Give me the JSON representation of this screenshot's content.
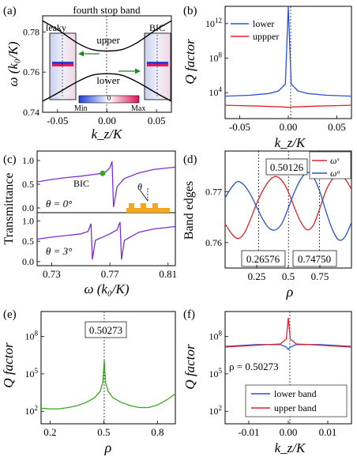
{
  "panels": {
    "a": {
      "label": "(a)",
      "title": "fourth stop band",
      "ylabel": "ω (k₀/K)",
      "xlabel": "k_z/K",
      "band_upper": "upper",
      "band_lower": "lower",
      "inset_left": "leaky",
      "inset_right": "BIC",
      "cbar_min": "Min",
      "cbar_zero": "0",
      "cbar_max": "Max"
    },
    "b": {
      "label": "(b)",
      "ylabel": "Q factor",
      "xlabel": "k_z/K",
      "legend": [
        "lower",
        "uppper"
      ]
    },
    "c": {
      "label": "(c)",
      "ylabel": "Transmittance",
      "xlabel": "ω (k₀/K)",
      "bic": "BIC",
      "theta_top": "θ = 0°",
      "theta_bottom": "θ = 3°",
      "theta_symbol": "θ"
    },
    "d": {
      "label": "(d)",
      "ylabel": "Band edges",
      "xlabel": "ρ",
      "legend": [
        "ωˢ",
        "ωᵃ"
      ],
      "annotations": [
        "0.50126",
        "0.26576",
        "0.74750"
      ]
    },
    "e": {
      "label": "(e)",
      "ylabel": "Q factor",
      "xlabel": "ρ",
      "annotation": "0.50273"
    },
    "f": {
      "label": "(f)",
      "ylabel": "Q factor",
      "xlabel": "k_z/K",
      "annotation": "ρ = 0.50273",
      "legend": [
        "lower band",
        "upper band"
      ]
    }
  },
  "colors": {
    "blue": "#2b4fd8",
    "red": "#e0232b",
    "purple": "#7b2fd6",
    "green": "#3aa620",
    "orange": "#f5a623"
  },
  "chart_data": [
    {
      "panel": "a",
      "type": "line",
      "xlim": [
        -0.065,
        0.065
      ],
      "ylim": [
        0.74,
        0.788
      ],
      "xticks": [
        "-0.05",
        "0.00",
        "0.05"
      ],
      "yticks": [
        "0.74",
        "0.76",
        "0.78"
      ],
      "series": [
        {
          "name": "upper",
          "x": [
            -0.065,
            -0.05,
            -0.03,
            -0.015,
            0,
            0.015,
            0.03,
            0.05,
            0.065
          ],
          "y": [
            0.7855,
            0.7812,
            0.7745,
            0.7712,
            0.7705,
            0.7712,
            0.7745,
            0.7812,
            0.7855
          ]
        },
        {
          "name": "lower",
          "x": [
            -0.065,
            -0.05,
            -0.03,
            -0.015,
            0,
            0.015,
            0.03,
            0.05,
            0.065
          ],
          "y": [
            0.7455,
            0.7495,
            0.7552,
            0.7584,
            0.7592,
            0.7584,
            0.7552,
            0.7495,
            0.7455
          ]
        }
      ]
    },
    {
      "panel": "b",
      "type": "line",
      "xlim": [
        -0.065,
        0.065
      ],
      "ylim": "log 1e1 to 1e14",
      "xticks": [
        "-0.05",
        "0.00",
        "0.05"
      ],
      "yticks": [
        "10^4",
        "10^8",
        "10^12"
      ],
      "series": [
        {
          "name": "lower",
          "x": [
            -0.065,
            -0.04,
            -0.02,
            -0.01,
            -0.003,
            0,
            0.003,
            0.01,
            0.02,
            0.04,
            0.065
          ],
          "log10y": [
            3.6,
            3.7,
            3.9,
            4.2,
            5.0,
            14,
            5.0,
            4.2,
            3.9,
            3.7,
            3.6
          ]
        },
        {
          "name": "uppper",
          "x": [
            -0.065,
            -0.03,
            -0.005,
            0,
            0.005,
            0.03,
            0.065
          ],
          "log10y": [
            2.55,
            2.45,
            2.35,
            2.3,
            2.35,
            2.45,
            2.55
          ]
        }
      ]
    },
    {
      "panel": "c",
      "type": "line",
      "xlim": [
        0.72,
        0.815
      ],
      "xticks": [
        "0.73",
        "0.77",
        "0.81"
      ],
      "yticks": [
        "0.0",
        "0.5",
        "1.0"
      ],
      "bic_point": {
        "x": 0.765,
        "y": 0.73
      },
      "series": [
        {
          "name": "θ = 0°",
          "x": [
            0.72,
            0.73,
            0.74,
            0.75,
            0.76,
            0.765,
            0.768,
            0.77,
            0.7715,
            0.7725,
            0.775,
            0.78,
            0.79,
            0.8,
            0.815
          ],
          "y": [
            0.55,
            0.6,
            0.64,
            0.67,
            0.71,
            0.73,
            0.78,
            0.85,
            0.98,
            0.02,
            0.45,
            0.62,
            0.74,
            0.81,
            0.86
          ]
        },
        {
          "name": "θ = 3°",
          "x": [
            0.72,
            0.73,
            0.74,
            0.75,
            0.755,
            0.757,
            0.758,
            0.76,
            0.77,
            0.775,
            0.777,
            0.778,
            0.78,
            0.79,
            0.8,
            0.815
          ],
          "y": [
            0.55,
            0.6,
            0.64,
            0.68,
            0.74,
            0.93,
            0.05,
            0.52,
            0.68,
            0.78,
            0.97,
            0.05,
            0.52,
            0.72,
            0.8,
            0.86
          ]
        }
      ]
    },
    {
      "panel": "d",
      "type": "line",
      "xlim": [
        0,
        1
      ],
      "ylim": [
        0.755,
        0.778
      ],
      "xticks": [
        "0.25",
        "0.5",
        "0.75"
      ],
      "yticks": [
        "0.76",
        "0.77"
      ],
      "vlines": [
        0.26576,
        0.50126,
        0.7475
      ],
      "series": [
        {
          "name": "ωˢ",
          "x": [
            0,
            0.05,
            0.1,
            0.15,
            0.2,
            0.25,
            0.3,
            0.35,
            0.4,
            0.45,
            0.5,
            0.55,
            0.6,
            0.65,
            0.7,
            0.75,
            0.8,
            0.85,
            0.9,
            0.95,
            1.0
          ],
          "y": [
            0.7637,
            0.7618,
            0.7608,
            0.7618,
            0.7645,
            0.7677,
            0.7703,
            0.7722,
            0.773,
            0.7722,
            0.77,
            0.7668,
            0.764,
            0.7625,
            0.7635,
            0.7668,
            0.7703,
            0.7725,
            0.7733,
            0.7725,
            0.7705
          ]
        },
        {
          "name": "ωᵃ",
          "x": [
            0,
            0.05,
            0.1,
            0.15,
            0.2,
            0.25,
            0.3,
            0.35,
            0.4,
            0.45,
            0.5,
            0.55,
            0.6,
            0.65,
            0.7,
            0.75,
            0.8,
            0.85,
            0.9,
            0.95,
            1.0
          ],
          "y": [
            0.7688,
            0.7708,
            0.772,
            0.7713,
            0.7695,
            0.767,
            0.7645,
            0.7628,
            0.7625,
            0.7638,
            0.7668,
            0.77,
            0.7725,
            0.7738,
            0.7728,
            0.77,
            0.766,
            0.7625,
            0.7605,
            0.7612,
            0.764
          ]
        }
      ]
    },
    {
      "panel": "e",
      "type": "line",
      "xlim": [
        0.15,
        0.9
      ],
      "ylim": "log 1e1 to 1e10",
      "xticks": [
        "0.2",
        "0.5",
        "0.8"
      ],
      "yticks": [
        "10^2",
        "10^5",
        "10^8"
      ],
      "vlines": [
        0.50273
      ],
      "series": [
        {
          "name": "Q",
          "x": [
            0.15,
            0.2,
            0.25,
            0.3,
            0.35,
            0.4,
            0.45,
            0.48,
            0.495,
            0.50273,
            0.51,
            0.525,
            0.55,
            0.6,
            0.65,
            0.7,
            0.75,
            0.8,
            0.85,
            0.9
          ],
          "log10y": [
            2.25,
            2.2,
            2.2,
            2.3,
            2.45,
            2.7,
            3.1,
            3.6,
            4.3,
            6.1,
            4.3,
            3.6,
            3.1,
            2.7,
            2.45,
            2.3,
            2.3,
            2.5,
            2.9,
            3.4
          ]
        }
      ]
    },
    {
      "panel": "f",
      "type": "line",
      "xlim": [
        -0.016,
        0.016
      ],
      "ylim": "log 1e1 to 1e10",
      "xticks": [
        "-0.01",
        "0.00",
        "0.01"
      ],
      "yticks": [
        "10^2",
        "10^5",
        "10^8"
      ],
      "series": [
        {
          "name": "lower band",
          "x": [
            -0.016,
            -0.008,
            -0.002,
            -0.0005,
            0,
            0.0005,
            0.002,
            0.008,
            0.016
          ],
          "log10y": [
            7.2,
            7.35,
            7.35,
            7.15,
            6.95,
            7.15,
            7.35,
            7.35,
            7.2
          ]
        },
        {
          "name": "upper band",
          "x": [
            -0.016,
            -0.008,
            -0.002,
            -0.0005,
            0,
            0.0005,
            0.002,
            0.008,
            0.016
          ],
          "log10y": [
            7.15,
            7.3,
            7.4,
            7.8,
            9.5,
            7.8,
            7.4,
            7.3,
            7.15
          ]
        }
      ]
    }
  ]
}
